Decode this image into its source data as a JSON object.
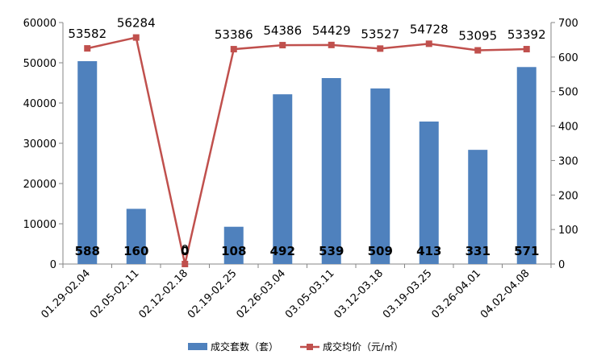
{
  "chart_data": {
    "type": "bar",
    "categories": [
      "01.29-02.04",
      "02.05-02.11",
      "02.12-02.18",
      "02.19-02.25",
      "02.26-03.04",
      "03.05-03.11",
      "03.12-03.18",
      "03.19-03.25",
      "03.26-04.01",
      "04.02-04.08"
    ],
    "series": [
      {
        "name": "成交套数（套）",
        "type": "bar",
        "axis": "right",
        "color": "#4F81BD",
        "values": [
          588,
          160,
          0,
          108,
          492,
          539,
          509,
          413,
          331,
          571
        ],
        "labels": [
          "588",
          "160",
          "0",
          "108",
          "492",
          "539",
          "509",
          "413",
          "331",
          "571"
        ]
      },
      {
        "name": "成交均价（元/㎡）",
        "type": "line",
        "axis": "left",
        "color": "#C0504D",
        "values": [
          53582,
          56284,
          0,
          53386,
          54386,
          54429,
          53527,
          54728,
          53095,
          53392
        ],
        "labels": [
          "53582",
          "56284",
          "0",
          "53386",
          "54386",
          "54429",
          "53527",
          "54728",
          "53095",
          "53392"
        ]
      }
    ],
    "y_left": {
      "ylim": [
        0,
        60000
      ],
      "ticks": [
        "0",
        "10000",
        "20000",
        "30000",
        "40000",
        "50000",
        "60000"
      ]
    },
    "y_right": {
      "ylim": [
        0,
        700
      ],
      "ticks": [
        "0",
        "100",
        "200",
        "300",
        "400",
        "500",
        "600",
        "700"
      ]
    },
    "grid": false,
    "legend": "bottom"
  }
}
